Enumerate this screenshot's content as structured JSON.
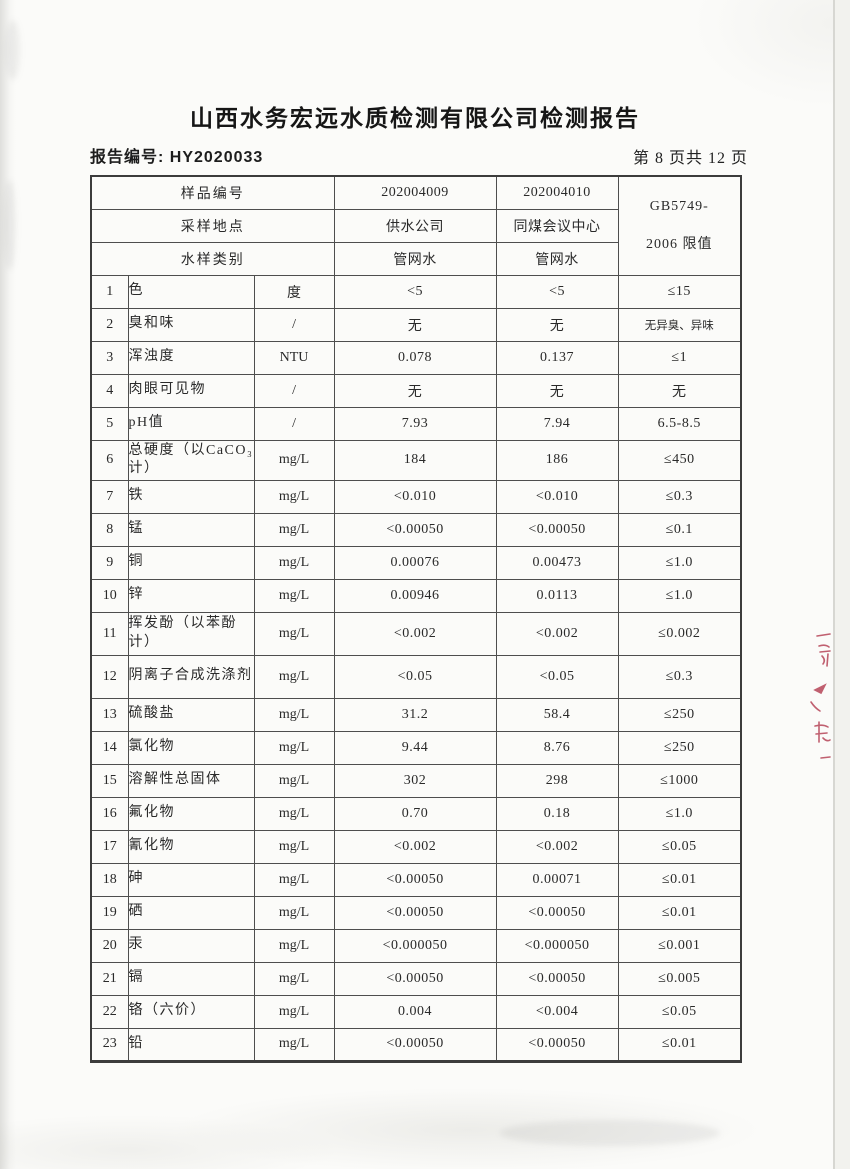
{
  "page": {
    "title": "山西水务宏远水质检测有限公司检测报告",
    "report_no": "报告编号: HY2020033",
    "page_indicator": "第 8 页共 12 页"
  },
  "table": {
    "header": {
      "sample_id_label": "样品编号",
      "sample_location_label": "采样地点",
      "sample_type_label": "水样类别",
      "sample1": {
        "id": "202004009",
        "location": "供水公司",
        "type": "管网水"
      },
      "sample2": {
        "id": "202004010",
        "location": "同煤会议中心",
        "type": "管网水"
      },
      "limit_line1": "GB5749-",
      "limit_line2": "2006 限值"
    },
    "rows": [
      {
        "no": "1",
        "param": "色",
        "unit": "度",
        "v1": "<5",
        "v2": "<5",
        "limit": "≤15"
      },
      {
        "no": "2",
        "param": "臭和味",
        "unit": "/",
        "v1": "无",
        "v2": "无",
        "limit": "无异臭、异味"
      },
      {
        "no": "3",
        "param": "浑浊度",
        "unit": "NTU",
        "v1": "0.078",
        "v2": "0.137",
        "limit": "≤1"
      },
      {
        "no": "4",
        "param": "肉眼可见物",
        "unit": "/",
        "v1": "无",
        "v2": "无",
        "limit": "无"
      },
      {
        "no": "5",
        "param": "pH值",
        "unit": "/",
        "v1": "7.93",
        "v2": "7.94",
        "limit": "6.5-8.5"
      },
      {
        "no": "6",
        "param": "总硬度（以CaCO₃计）",
        "unit": "mg/L",
        "v1": "184",
        "v2": "186",
        "limit": "≤450"
      },
      {
        "no": "7",
        "param": "铁",
        "unit": "mg/L",
        "v1": "<0.010",
        "v2": "<0.010",
        "limit": "≤0.3"
      },
      {
        "no": "8",
        "param": "锰",
        "unit": "mg/L",
        "v1": "<0.00050",
        "v2": "<0.00050",
        "limit": "≤0.1"
      },
      {
        "no": "9",
        "param": "铜",
        "unit": "mg/L",
        "v1": "0.00076",
        "v2": "0.00473",
        "limit": "≤1.0"
      },
      {
        "no": "10",
        "param": "锌",
        "unit": "mg/L",
        "v1": "0.00946",
        "v2": "0.0113",
        "limit": "≤1.0"
      },
      {
        "no": "11",
        "param": "挥发酚（以苯酚计）",
        "unit": "mg/L",
        "v1": "<0.002",
        "v2": "<0.002",
        "limit": "≤0.002"
      },
      {
        "no": "12",
        "param": "阴离子合成洗涤剂",
        "unit": "mg/L",
        "v1": "<0.05",
        "v2": "<0.05",
        "limit": "≤0.3"
      },
      {
        "no": "13",
        "param": "硫酸盐",
        "unit": "mg/L",
        "v1": "31.2",
        "v2": "58.4",
        "limit": "≤250"
      },
      {
        "no": "14",
        "param": "氯化物",
        "unit": "mg/L",
        "v1": "9.44",
        "v2": "8.76",
        "limit": "≤250"
      },
      {
        "no": "15",
        "param": "溶解性总固体",
        "unit": "mg/L",
        "v1": "302",
        "v2": "298",
        "limit": "≤1000"
      },
      {
        "no": "16",
        "param": "氟化物",
        "unit": "mg/L",
        "v1": "0.70",
        "v2": "0.18",
        "limit": "≤1.0"
      },
      {
        "no": "17",
        "param": "氰化物",
        "unit": "mg/L",
        "v1": "<0.002",
        "v2": "<0.002",
        "limit": "≤0.05"
      },
      {
        "no": "18",
        "param": "砷",
        "unit": "mg/L",
        "v1": "<0.00050",
        "v2": "0.00071",
        "limit": "≤0.01"
      },
      {
        "no": "19",
        "param": "硒",
        "unit": "mg/L",
        "v1": "<0.00050",
        "v2": "<0.00050",
        "limit": "≤0.01"
      },
      {
        "no": "20",
        "param": "汞",
        "unit": "mg/L",
        "v1": "<0.000050",
        "v2": "<0.000050",
        "limit": "≤0.001"
      },
      {
        "no": "21",
        "param": "镉",
        "unit": "mg/L",
        "v1": "<0.00050",
        "v2": "<0.00050",
        "limit": "≤0.005"
      },
      {
        "no": "22",
        "param": "铬（六价）",
        "unit": "mg/L",
        "v1": "0.004",
        "v2": "<0.004",
        "limit": "≤0.05"
      },
      {
        "no": "23",
        "param": "铅",
        "unit": "mg/L",
        "v1": "<0.00050",
        "v2": "<0.00050",
        "limit": "≤0.01"
      }
    ]
  },
  "stamp": {
    "color": "#b23a4e"
  }
}
